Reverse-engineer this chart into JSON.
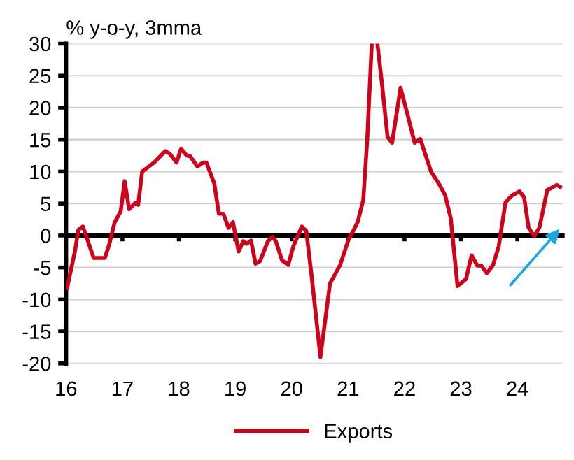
{
  "chart_data": {
    "type": "line",
    "ylabel": "% y-o-y, 3mma",
    "x": [
      16.02,
      16.16,
      16.22,
      16.3,
      16.49,
      16.69,
      16.77,
      16.86,
      16.97,
      17.04,
      17.12,
      17.23,
      17.28,
      17.35,
      17.56,
      17.76,
      17.84,
      17.96,
      18.04,
      18.14,
      18.2,
      18.33,
      18.43,
      18.49,
      18.63,
      18.71,
      18.79,
      18.88,
      18.96,
      19.06,
      19.14,
      19.2,
      19.28,
      19.36,
      19.44,
      19.58,
      19.66,
      19.72,
      19.83,
      19.94,
      20.03,
      20.18,
      20.26,
      20.36,
      20.51,
      20.68,
      20.86,
      21.01,
      21.09,
      21.17,
      21.27,
      21.34,
      21.42,
      21.47,
      21.52,
      21.6,
      21.7,
      21.78,
      21.93,
      22.06,
      22.18,
      22.28,
      22.47,
      22.63,
      22.72,
      22.82,
      22.94,
      23.09,
      23.19,
      23.29,
      23.36,
      23.46,
      23.57,
      23.67,
      23.79,
      23.91,
      24.04,
      24.12,
      24.2,
      24.3,
      24.39,
      24.53,
      24.7,
      24.76
    ],
    "series": [
      {
        "name": "Exports",
        "color": "#d0021b",
        "values": [
          -8.2,
          -2.4,
          0.9,
          1.4,
          -3.5,
          -3.5,
          -1.3,
          2.0,
          3.8,
          8.5,
          4.1,
          5.1,
          4.8,
          10.0,
          11.4,
          13.2,
          12.8,
          11.4,
          13.6,
          12.5,
          12.4,
          10.8,
          11.4,
          11.4,
          8.1,
          3.4,
          3.4,
          1.2,
          2.1,
          -2.5,
          -0.9,
          -1.3,
          -0.8,
          -4.4,
          -4.0,
          -0.9,
          -0.2,
          -0.9,
          -3.9,
          -4.6,
          -1.7,
          1.4,
          0.7,
          -6.8,
          -19.0,
          -7.5,
          -4.6,
          -0.6,
          0.7,
          2.1,
          5.6,
          15.1,
          30,
          null,
          30,
          23.8,
          15.4,
          14.5,
          23.1,
          18.7,
          14.5,
          15.1,
          10.0,
          7.8,
          6.3,
          2.7,
          -7.9,
          -6.8,
          -3.1,
          -4.7,
          -4.7,
          -5.9,
          -4.6,
          -1.7,
          5.2,
          6.3,
          6.9,
          6.0,
          1.2,
          -0.1,
          1.2,
          7.1,
          7.9,
          7.6
        ]
      }
    ],
    "xlim": [
      16,
      24.8
    ],
    "xticks": [
      16,
      17,
      18,
      19,
      20,
      21,
      22,
      23,
      24
    ],
    "ylim": [
      -20,
      30
    ],
    "yticks": [
      -20,
      -15,
      -10,
      -5,
      0,
      5,
      10,
      15,
      20,
      25,
      30
    ],
    "grid": "y",
    "legend": "bottom",
    "marker": "none",
    "line_style": "solid"
  }
}
